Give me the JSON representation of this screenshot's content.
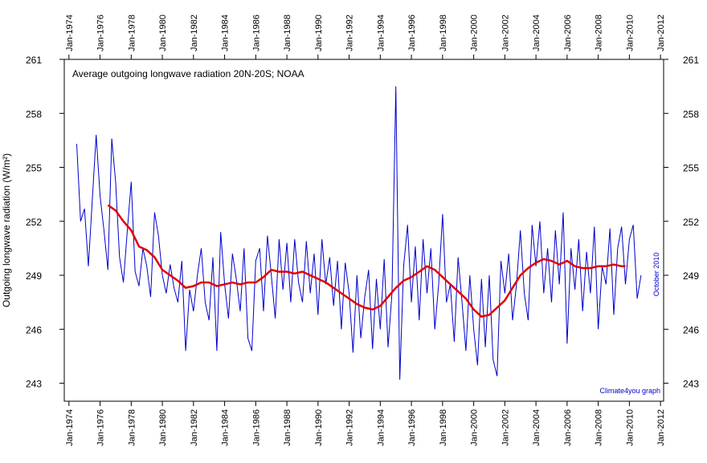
{
  "chart_data": {
    "type": "line",
    "title": "Average outgoing longwave radiation 20N-20S; NOAA",
    "y_label": "Outgoing longwave radiation (W/m²)",
    "annotations": [
      "October 2010",
      "Climate4you graph"
    ],
    "xlim": [
      1973.7,
      2012.2
    ],
    "ylim": [
      242,
      261
    ],
    "xticks": [
      {
        "value": 1974,
        "label": "Jan-1974"
      },
      {
        "value": 1976,
        "label": "Jan-1976"
      },
      {
        "value": 1978,
        "label": "Jan-1978"
      },
      {
        "value": 1980,
        "label": "Jan-1980"
      },
      {
        "value": 1982,
        "label": "Jan-1982"
      },
      {
        "value": 1984,
        "label": "Jan-1984"
      },
      {
        "value": 1986,
        "label": "Jan-1986"
      },
      {
        "value": 1988,
        "label": "Jan-1988"
      },
      {
        "value": 1990,
        "label": "Jan-1990"
      },
      {
        "value": 1992,
        "label": "Jan-1992"
      },
      {
        "value": 1994,
        "label": "Jan-1994"
      },
      {
        "value": 1996,
        "label": "Jan-1996"
      },
      {
        "value": 1998,
        "label": "Jan-1998"
      },
      {
        "value": 2000,
        "label": "Jan-2000"
      },
      {
        "value": 2002,
        "label": "Jan-2002"
      },
      {
        "value": 2004,
        "label": "Jan-2004"
      },
      {
        "value": 2006,
        "label": "Jan-2006"
      },
      {
        "value": 2008,
        "label": "Jan-2008"
      },
      {
        "value": 2010,
        "label": "Jan-2010"
      },
      {
        "value": 2012,
        "label": "Jan-2012"
      }
    ],
    "yticks": [
      243,
      246,
      249,
      252,
      255,
      258,
      261
    ],
    "series": [
      {
        "color": "#0000cc",
        "x": [
          1974.5,
          1974.75,
          1975,
          1975.25,
          1975.5,
          1975.75,
          1976,
          1976.25,
          1976.5,
          1976.75,
          1977,
          1977.25,
          1977.5,
          1977.75,
          1978,
          1978.25,
          1978.5,
          1978.75,
          1979,
          1979.25,
          1979.5,
          1979.75,
          1980,
          1980.25,
          1980.5,
          1980.75,
          1981,
          1981.25,
          1981.5,
          1981.75,
          1982,
          1982.25,
          1982.5,
          1982.75,
          1983,
          1983.25,
          1983.5,
          1983.75,
          1984,
          1984.25,
          1984.5,
          1984.75,
          1985,
          1985.25,
          1985.5,
          1985.75,
          1986,
          1986.25,
          1986.5,
          1986.75,
          1987,
          1987.25,
          1987.5,
          1987.75,
          1988,
          1988.25,
          1988.5,
          1988.75,
          1989,
          1989.25,
          1989.5,
          1989.75,
          1990,
          1990.25,
          1990.5,
          1990.75,
          1991,
          1991.25,
          1991.5,
          1991.75,
          1992,
          1992.25,
          1992.5,
          1992.75,
          1993,
          1993.25,
          1993.5,
          1993.75,
          1994,
          1994.25,
          1994.5,
          1994.75,
          1995,
          1995.25,
          1995.5,
          1995.75,
          1996,
          1996.25,
          1996.5,
          1996.75,
          1997,
          1997.25,
          1997.5,
          1997.75,
          1998,
          1998.25,
          1998.5,
          1998.75,
          1999,
          1999.25,
          1999.5,
          1999.75,
          2000,
          2000.25,
          2000.5,
          2000.75,
          2001,
          2001.25,
          2001.5,
          2001.75,
          2002,
          2002.25,
          2002.5,
          2002.75,
          2003,
          2003.25,
          2003.5,
          2003.75,
          2004,
          2004.25,
          2004.5,
          2004.75,
          2005,
          2005.25,
          2005.5,
          2005.75,
          2006,
          2006.25,
          2006.5,
          2006.75,
          2007,
          2007.25,
          2007.5,
          2007.75,
          2008,
          2008.25,
          2008.5,
          2008.75,
          2009,
          2009.25,
          2009.5,
          2009.75,
          2010,
          2010.25,
          2010.5,
          2010.75
        ],
        "values": [
          256.3,
          252.0,
          252.7,
          249.5,
          253.2,
          256.8,
          253.4,
          251.5,
          249.3,
          256.6,
          254.2,
          250.0,
          248.6,
          251.5,
          254.2,
          249.2,
          248.4,
          250.5,
          249.5,
          247.8,
          252.5,
          251.2,
          249.0,
          248.0,
          249.6,
          248.3,
          247.5,
          249.8,
          244.8,
          248.2,
          247.0,
          249.0,
          250.5,
          247.5,
          246.5,
          250.0,
          244.8,
          251.4,
          248.5,
          246.6,
          250.2,
          248.8,
          247.0,
          250.5,
          245.5,
          244.8,
          249.8,
          250.5,
          247.0,
          251.2,
          249.0,
          246.6,
          251.0,
          248.2,
          250.8,
          247.5,
          251.0,
          248.6,
          247.5,
          250.9,
          248.0,
          250.2,
          246.8,
          251.0,
          248.5,
          250.0,
          247.3,
          249.8,
          246.0,
          249.7,
          248.0,
          244.7,
          249.0,
          245.5,
          247.8,
          249.3,
          244.9,
          248.8,
          246.0,
          249.9,
          245.0,
          248.0,
          259.5,
          243.2,
          249.5,
          251.8,
          247.5,
          250.6,
          246.5,
          251.0,
          248.0,
          250.5,
          246.0,
          248.5,
          252.4,
          247.5,
          248.5,
          245.3,
          250.0,
          247.5,
          244.8,
          249.0,
          246.0,
          244.0,
          248.8,
          245.0,
          249.0,
          244.3,
          243.4,
          249.8,
          248.0,
          250.2,
          246.5,
          248.5,
          251.5,
          248.0,
          246.5,
          251.8,
          249.5,
          252.0,
          248.0,
          250.5,
          247.5,
          251.5,
          248.5,
          252.5,
          245.2,
          250.5,
          248.2,
          251.0,
          247.0,
          250.3,
          248.0,
          251.7,
          246.0,
          249.5,
          248.5,
          251.6,
          246.8,
          250.5,
          251.7,
          248.5,
          251.0,
          251.8,
          247.7,
          249.0
        ]
      },
      {
        "color": "#e00000",
        "x": [
          1976.5,
          1977,
          1977.5,
          1978,
          1978.5,
          1979,
          1979.5,
          1980,
          1980.5,
          1981,
          1981.5,
          1982,
          1982.5,
          1983,
          1983.5,
          1984,
          1984.5,
          1985,
          1985.5,
          1986,
          1986.5,
          1987,
          1987.5,
          1988,
          1988.5,
          1989,
          1989.5,
          1990,
          1990.5,
          1991,
          1991.5,
          1992,
          1992.5,
          1993,
          1993.5,
          1994,
          1994.5,
          1995,
          1995.5,
          1996,
          1996.5,
          1997,
          1997.5,
          1998,
          1998.5,
          1999,
          1999.5,
          2000,
          2000.5,
          2001,
          2001.5,
          2002,
          2002.5,
          2003,
          2003.5,
          2004,
          2004.5,
          2005,
          2005.5,
          2006,
          2006.5,
          2007,
          2007.5,
          2008,
          2008.5,
          2009,
          2009.5,
          2009.75
        ],
        "values": [
          252.9,
          252.6,
          252.0,
          251.5,
          250.6,
          250.4,
          250.0,
          249.3,
          249.0,
          248.7,
          248.3,
          248.4,
          248.6,
          248.6,
          248.4,
          248.5,
          248.6,
          248.5,
          248.6,
          248.6,
          248.9,
          249.3,
          249.2,
          249.2,
          249.1,
          249.2,
          249.0,
          248.8,
          248.6,
          248.3,
          248.0,
          247.7,
          247.4,
          247.2,
          247.1,
          247.3,
          247.8,
          248.3,
          248.7,
          248.9,
          249.2,
          249.5,
          249.3,
          248.9,
          248.5,
          248.1,
          247.7,
          247.1,
          246.7,
          246.8,
          247.2,
          247.6,
          248.3,
          249.0,
          249.4,
          249.7,
          249.9,
          249.8,
          249.6,
          249.8,
          249.5,
          249.4,
          249.4,
          249.5,
          249.5,
          249.6,
          249.5,
          249.5
        ]
      }
    ]
  }
}
